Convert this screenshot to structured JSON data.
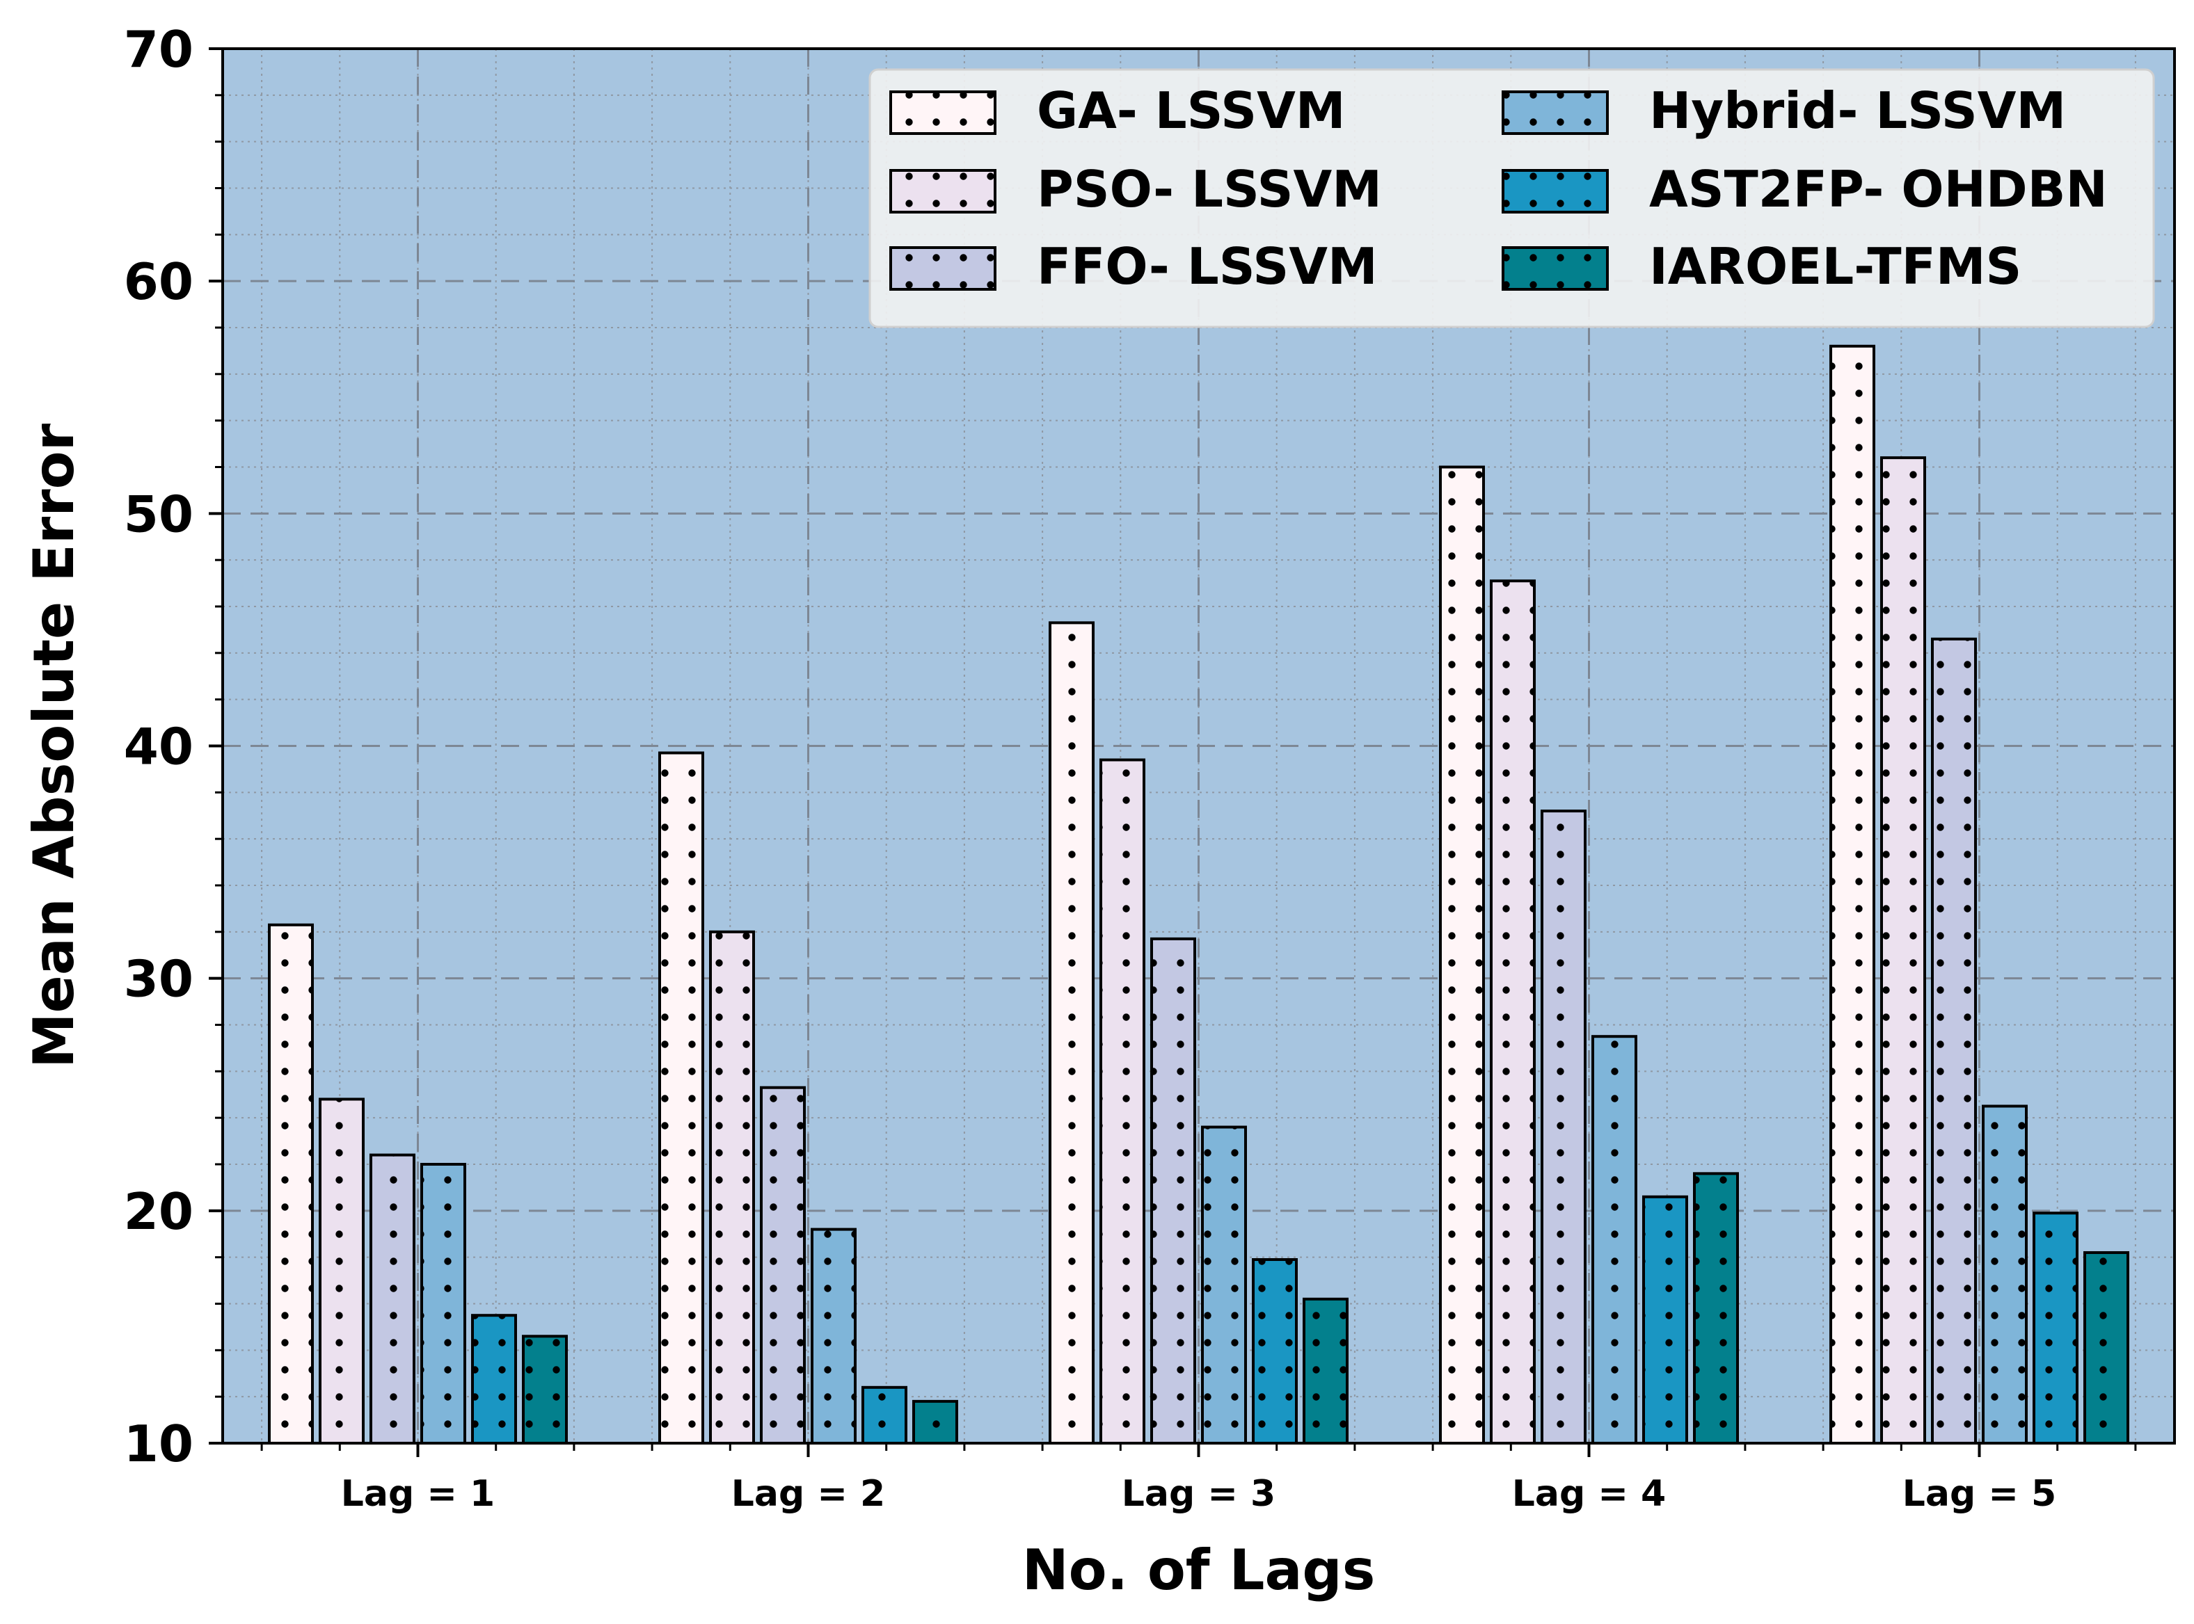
{
  "chart_data": {
    "type": "bar",
    "title": "",
    "xlabel": "No. of Lags",
    "ylabel": "Mean Absolute Error",
    "categories": [
      "Lag = 1",
      "Lag = 2",
      "Lag = 3",
      "Lag = 4",
      "Lag = 5"
    ],
    "ylim": [
      10,
      70
    ],
    "yticks": [
      "10",
      "20",
      "30",
      "40",
      "50",
      "60",
      "70"
    ],
    "grid": true,
    "legend_position": "top-right",
    "series": [
      {
        "name": "GA- LSSVM",
        "color": "#fff5f7",
        "values": [
          32.3,
          39.7,
          45.3,
          52.0,
          57.2
        ]
      },
      {
        "name": "PSO- LSSVM",
        "color": "#ece1ef",
        "values": [
          24.8,
          32.0,
          39.4,
          47.1,
          52.4
        ]
      },
      {
        "name": "FFO- LSSVM",
        "color": "#c3c8e3",
        "values": [
          22.4,
          25.3,
          31.7,
          37.2,
          44.6
        ]
      },
      {
        "name": "Hybrid- LSSVM",
        "color": "#7fb5d9",
        "values": [
          22.0,
          19.2,
          23.6,
          27.5,
          24.5
        ]
      },
      {
        "name": "AST2FP- OHDBN",
        "color": "#1a96c3",
        "values": [
          15.5,
          12.4,
          17.9,
          20.6,
          19.9
        ]
      },
      {
        "name": "IAROEL-TFMS",
        "color": "#03808d",
        "values": [
          14.6,
          11.8,
          16.2,
          21.6,
          18.2
        ]
      }
    ]
  }
}
